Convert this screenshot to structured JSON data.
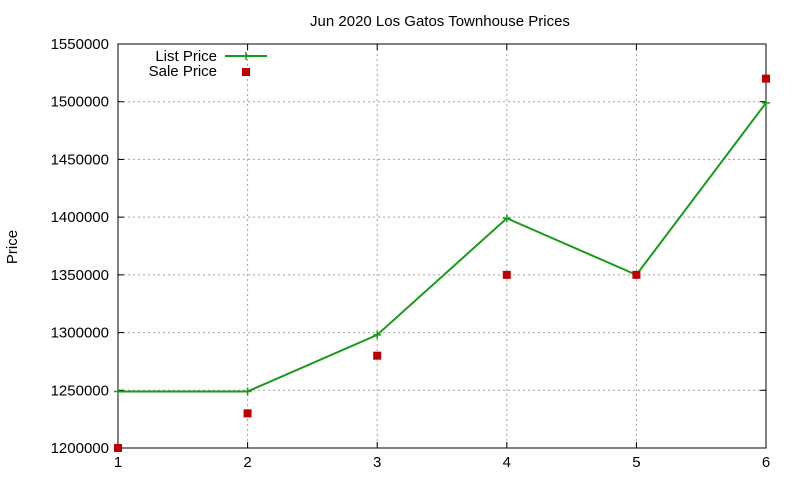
{
  "chart_data": {
    "type": "line",
    "title": "Jun 2020 Los Gatos Townhouse Prices",
    "xlabel": "",
    "ylabel": "Price",
    "xlim": [
      1,
      6
    ],
    "ylim": [
      1200000,
      1550000
    ],
    "x_ticks": [
      1,
      2,
      3,
      4,
      5,
      6
    ],
    "y_ticks": [
      1200000,
      1250000,
      1300000,
      1350000,
      1400000,
      1450000,
      1500000,
      1550000
    ],
    "grid": true,
    "legend_position": "top-left",
    "series": [
      {
        "name": "List Price",
        "style": "line-with-plus-markers",
        "color": "#1a9a1a",
        "x": [
          1,
          2,
          3,
          4,
          5,
          6
        ],
        "y": [
          1249000,
          1249000,
          1298000,
          1399000,
          1350000,
          1499000
        ]
      },
      {
        "name": "Sale Price",
        "style": "square-markers",
        "color": "#c00000",
        "x": [
          1,
          2,
          3,
          4,
          5,
          6
        ],
        "y": [
          1200000,
          1230000,
          1280000,
          1350000,
          1350000,
          1520000
        ]
      }
    ]
  }
}
